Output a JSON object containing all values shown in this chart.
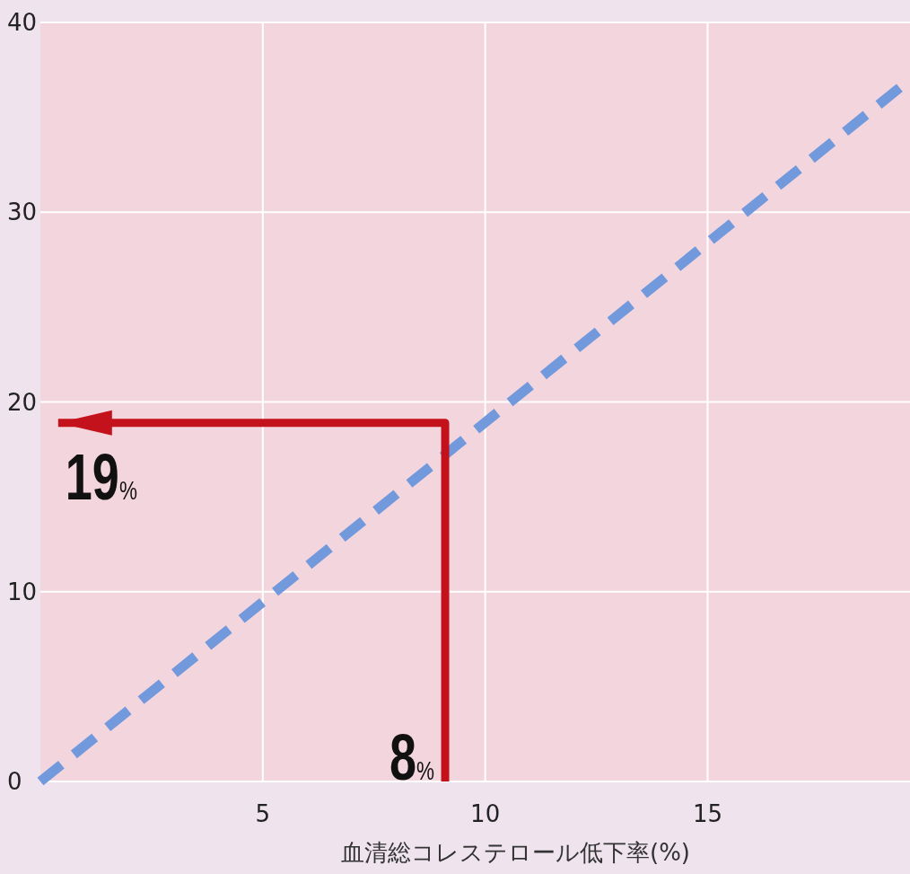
{
  "chart_data": {
    "type": "line",
    "xlabel": "血清総コレステロール低下率(%)",
    "xlim": [
      0,
      19.55
    ],
    "ylim": [
      0,
      40
    ],
    "xticks": [
      5,
      10,
      15
    ],
    "yticks": [
      0,
      10,
      20,
      30,
      40
    ],
    "grid": true,
    "series": [
      {
        "color": "#7199dc",
        "line_style": "dashed",
        "x": [
          0,
          19.55
        ],
        "values": [
          0,
          37
        ]
      },
      {
        "color": "#c4121c",
        "line_style": "solid",
        "x": [
          9.1,
          9.1,
          0.4
        ],
        "values": [
          0,
          18.9,
          18.9
        ]
      }
    ],
    "annotations": [
      {
        "text": "19%",
        "x": 0.4,
        "y": 18.9
      },
      {
        "text": "8%",
        "x": 9.1,
        "y": 0
      }
    ]
  }
}
